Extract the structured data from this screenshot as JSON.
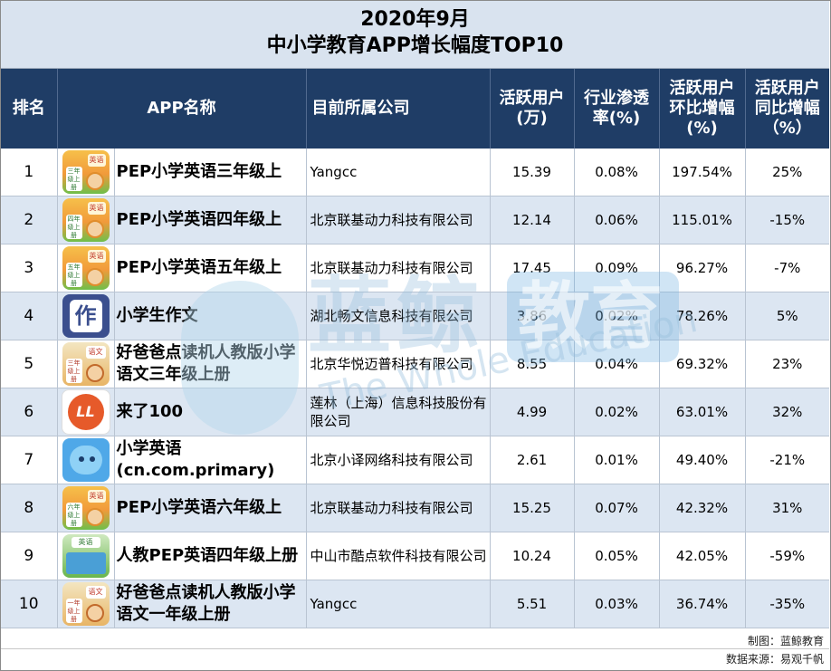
{
  "title": {
    "line1": "2020年9月",
    "line2": "中小学教育APP增长幅度TOP10"
  },
  "headers": {
    "rank": "排名",
    "app_name": "APP名称",
    "company": "目前所属公司",
    "active_users": "活跃用户\n(万)",
    "penetration": "行业渗透\n率(%)",
    "mom_growth": "活跃用户\n环比增幅\n(%)",
    "yoy_growth": "活跃用户\n同比增幅\n（%）"
  },
  "rows": [
    {
      "rank": "1",
      "icon": "pep-english-grade3-icon",
      "name": "PEP小学英语三年级上",
      "company": "Yangcc",
      "active_users": "15.39",
      "penetration": "0.08%",
      "mom": "197.54%",
      "yoy": "25%"
    },
    {
      "rank": "2",
      "icon": "pep-english-grade4-icon",
      "name": "PEP小学英语四年级上",
      "company": "北京联基动力科技有限公司",
      "active_users": "12.14",
      "penetration": "0.06%",
      "mom": "115.01%",
      "yoy": "-15%"
    },
    {
      "rank": "3",
      "icon": "pep-english-grade5-icon",
      "name": "PEP小学英语五年级上",
      "company": "北京联基动力科技有限公司",
      "active_users": "17.45",
      "penetration": "0.09%",
      "mom": "96.27%",
      "yoy": "-7%"
    },
    {
      "rank": "4",
      "icon": "composition-icon",
      "name": "小学生作文",
      "company": "湖北畅文信息科技有限公司",
      "active_users": "3.86",
      "penetration": "0.02%",
      "mom": "78.26%",
      "yoy": "5%"
    },
    {
      "rank": "5",
      "icon": "chinese-grade3-icon",
      "name": "好爸爸点读机人教版小学语文三年级上册",
      "company": "北京华悦迈普科技有限公司",
      "active_users": "8.55",
      "penetration": "0.04%",
      "mom": "69.32%",
      "yoy": "23%"
    },
    {
      "rank": "6",
      "icon": "laile100-icon",
      "name": "来了100",
      "company": "莲林（上海）信息科技股份有限公司",
      "active_users": "4.99",
      "penetration": "0.02%",
      "mom": "63.01%",
      "yoy": "32%"
    },
    {
      "rank": "7",
      "icon": "primary-english-icon",
      "name": "小学英语(cn.com.primary)",
      "company": "北京小译网络科技有限公司",
      "active_users": "2.61",
      "penetration": "0.01%",
      "mom": "49.40%",
      "yoy": "-21%"
    },
    {
      "rank": "8",
      "icon": "pep-english-grade6-icon",
      "name": "PEP小学英语六年级上",
      "company": "北京联基动力科技有限公司",
      "active_users": "15.25",
      "penetration": "0.07%",
      "mom": "42.32%",
      "yoy": "31%"
    },
    {
      "rank": "9",
      "icon": "pep-english-grade4-green-icon",
      "name": "人教PEP英语四年级上册",
      "company": "中山市酷点软件科技有限公司",
      "active_users": "10.24",
      "penetration": "0.05%",
      "mom": "42.05%",
      "yoy": "-59%"
    },
    {
      "rank": "10",
      "icon": "chinese-grade1-icon",
      "name": "好爸爸点读机人教版小学语文一年级上册",
      "company": "Yangcc",
      "active_users": "5.51",
      "penetration": "0.03%",
      "mom": "36.74%",
      "yoy": "-35%"
    }
  ],
  "icon_text": {
    "pep_tag": "英语",
    "grade3": "三年级上册",
    "grade4": "四年级上册",
    "grade5": "五年级上册",
    "grade6": "六年级上册",
    "zuowen_char": "作",
    "laile_mark": "LL",
    "yuwen_tag": "语文",
    "yuwen_grade3": "三年级上册",
    "yuwen_grade1": "一年级上册",
    "green_tag": "英语"
  },
  "watermark": {
    "brand_cn_1": "蓝鲸",
    "brand_cn_2": "教育",
    "brand_en": "The Whole Education"
  },
  "footer": {
    "made_by": "制图：蓝鲸教育",
    "source": "数据来源：易观千帆"
  },
  "colors": {
    "header_bg": "#1f3d66",
    "title_bg": "#d9e3ef",
    "alt_row_bg": "#dce6f2"
  }
}
